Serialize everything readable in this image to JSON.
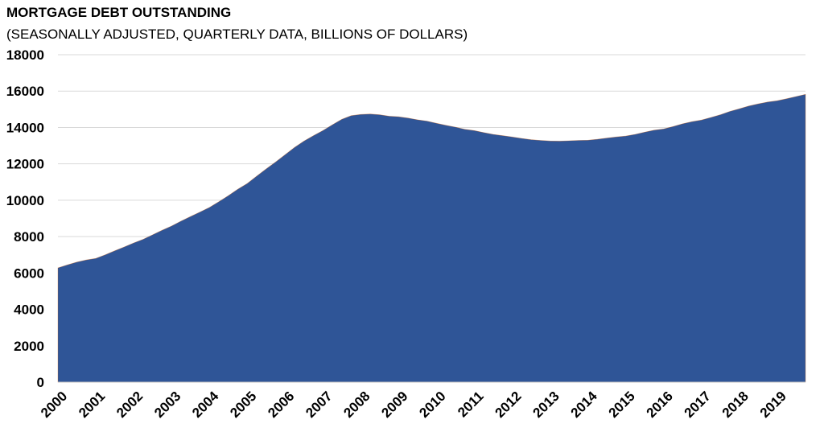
{
  "chart_data": {
    "type": "area",
    "title": "MORTGAGE DEBT OUTSTANDING",
    "subtitle": "(SEASONALLY ADJUSTED, QUARTERLY DATA, BILLIONS OF DOLLARS)",
    "xlabel": "",
    "ylabel": "",
    "ylim": [
      0,
      18000
    ],
    "yticks": [
      "0",
      "2000",
      "4000",
      "6000",
      "8000",
      "10000",
      "12000",
      "14000",
      "16000",
      "18000"
    ],
    "xticks": [
      "2000",
      "2001",
      "2002",
      "2003",
      "2004",
      "2005",
      "2006",
      "2007",
      "2008",
      "2009",
      "2010",
      "2011",
      "2012",
      "2013",
      "2014",
      "2015",
      "2016",
      "2017",
      "2018",
      "2019"
    ],
    "grid": true,
    "legend": "none",
    "color": "#2F5597",
    "series": [
      {
        "name": "Mortgage debt outstanding",
        "frequency": "quarterly, 2000Q1-2019Q4",
        "values": [
          6280,
          6450,
          6600,
          6720,
          6800,
          7000,
          7220,
          7430,
          7650,
          7850,
          8100,
          8350,
          8580,
          8850,
          9100,
          9350,
          9600,
          9920,
          10250,
          10600,
          10920,
          11320,
          11720,
          12100,
          12500,
          12900,
          13250,
          13550,
          13830,
          14150,
          14450,
          14650,
          14720,
          14740,
          14700,
          14620,
          14590,
          14520,
          14420,
          14350,
          14230,
          14120,
          14020,
          13900,
          13830,
          13720,
          13620,
          13550,
          13480,
          13400,
          13330,
          13290,
          13260,
          13250,
          13270,
          13290,
          13300,
          13350,
          13420,
          13480,
          13530,
          13620,
          13740,
          13850,
          13920,
          14050,
          14200,
          14320,
          14410,
          14550,
          14700,
          14880,
          15030,
          15180,
          15300,
          15400,
          15470,
          15580,
          15700,
          15820
        ]
      }
    ]
  }
}
